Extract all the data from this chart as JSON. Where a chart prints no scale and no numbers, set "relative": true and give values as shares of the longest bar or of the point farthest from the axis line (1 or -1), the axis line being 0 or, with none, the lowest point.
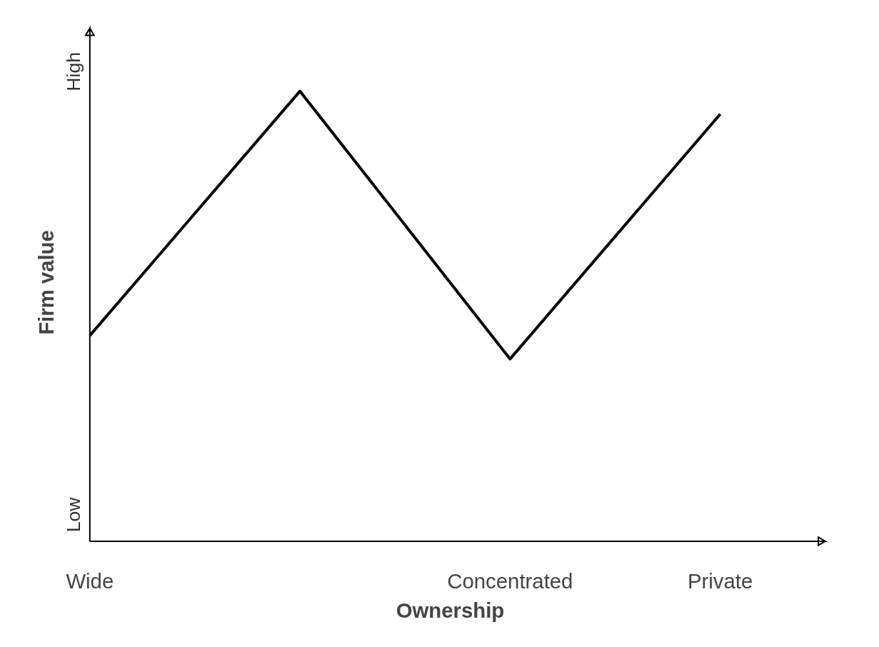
{
  "chart_data": {
    "type": "line",
    "relative": true,
    "xlabel": "Ownership",
    "ylabel": "Firm value",
    "categories": [
      "Wide",
      null,
      "Concentrated",
      "Private"
    ],
    "series": [
      {
        "color": "#000000",
        "values": [
          0.457,
          1,
          0.405,
          0.949
        ]
      }
    ],
    "annotations": [
      "Low",
      "High"
    ]
  }
}
